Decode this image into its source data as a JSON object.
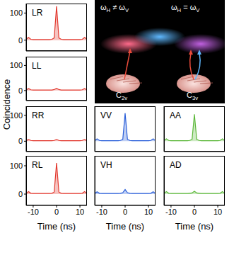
{
  "ylabel": "Coincidence",
  "inset": {
    "left_top": "ωH ≠ ωV",
    "right_top": "ωH = ωV",
    "left_bottom": "C2v",
    "right_bottom": "C3v"
  },
  "chart_data": [
    {
      "type": "area",
      "title": "LR",
      "color": "#e2392f",
      "x": [
        -13,
        -12,
        -11,
        -10,
        -9,
        -8,
        -7,
        -6,
        -5,
        -4,
        -3,
        -2,
        -1,
        0,
        1,
        2,
        3,
        4,
        5,
        6,
        7,
        8,
        9,
        10,
        11,
        12,
        13
      ],
      "values": [
        3,
        10,
        3,
        2,
        2,
        2,
        2,
        2,
        2,
        2,
        2,
        3,
        8,
        125,
        8,
        3,
        2,
        2,
        2,
        2,
        2,
        2,
        2,
        2,
        3,
        10,
        3
      ],
      "xlim": [
        -13,
        13
      ],
      "xticks": [
        -10,
        0,
        10
      ],
      "ylim": [
        -40,
        135
      ],
      "yticks": [
        0,
        100
      ],
      "tick_labels": "y"
    },
    {
      "type": "area",
      "title": "LL",
      "color": "#e2392f",
      "x": [
        -13,
        -12,
        -11,
        -10,
        -9,
        -8,
        -7,
        -6,
        -5,
        -4,
        -3,
        -2,
        -1,
        0,
        1,
        2,
        3,
        4,
        5,
        6,
        7,
        8,
        9,
        10,
        11,
        12,
        13
      ],
      "values": [
        2,
        8,
        3,
        2,
        2,
        2,
        2,
        2,
        2,
        2,
        2,
        2,
        4,
        9,
        4,
        2,
        2,
        2,
        2,
        2,
        2,
        2,
        2,
        2,
        3,
        8,
        2
      ],
      "xlim": [
        -13,
        13
      ],
      "xticks": [
        -10,
        0,
        10
      ],
      "ylim": [
        -40,
        135
      ],
      "yticks": [
        0,
        100
      ],
      "tick_labels": "y"
    },
    {
      "type": "area",
      "title": "RR",
      "color": "#e2392f",
      "x": [
        -13,
        -12,
        -11,
        -10,
        -9,
        -8,
        -7,
        -6,
        -5,
        -4,
        -3,
        -2,
        -1,
        0,
        1,
        2,
        3,
        4,
        5,
        6,
        7,
        8,
        9,
        10,
        11,
        12,
        13
      ],
      "values": [
        2,
        7,
        3,
        2,
        2,
        2,
        2,
        2,
        2,
        2,
        2,
        2,
        3,
        7,
        3,
        2,
        2,
        2,
        2,
        2,
        2,
        2,
        2,
        2,
        3,
        7,
        2
      ],
      "xlim": [
        -13,
        13
      ],
      "xticks": [
        -10,
        0,
        10
      ],
      "ylim": [
        -40,
        135
      ],
      "yticks": [
        0,
        100
      ],
      "tick_labels": "y"
    },
    {
      "type": "area",
      "title": "RL",
      "color": "#e2392f",
      "x": [
        -13,
        -12,
        -11,
        -10,
        -9,
        -8,
        -7,
        -6,
        -5,
        -4,
        -3,
        -2,
        -1,
        0,
        1,
        2,
        3,
        4,
        5,
        6,
        7,
        8,
        9,
        10,
        11,
        12,
        13
      ],
      "values": [
        2,
        9,
        3,
        2,
        2,
        2,
        2,
        2,
        2,
        2,
        2,
        3,
        7,
        110,
        7,
        3,
        2,
        2,
        2,
        2,
        2,
        2,
        2,
        2,
        3,
        9,
        2
      ],
      "xlim": [
        -13,
        13
      ],
      "xticks": [
        -10,
        0,
        10
      ],
      "ylim": [
        -40,
        135
      ],
      "yticks": [
        0,
        100
      ],
      "tick_labels": true,
      "xlabel": "Time (ns)"
    },
    {
      "type": "area",
      "title": "VV",
      "color": "#2b5fd9",
      "x": [
        -13,
        -12,
        -11,
        -10,
        -9,
        -8,
        -7,
        -6,
        -5,
        -4,
        -3,
        -2,
        -1,
        0,
        1,
        2,
        3,
        4,
        5,
        6,
        7,
        8,
        9,
        10,
        11,
        12,
        13
      ],
      "values": [
        2,
        9,
        3,
        2,
        2,
        2,
        2,
        2,
        2,
        2,
        2,
        3,
        7,
        108,
        7,
        3,
        2,
        2,
        2,
        2,
        2,
        2,
        2,
        2,
        3,
        9,
        2
      ],
      "xlim": [
        -13,
        13
      ],
      "xticks": [
        -10,
        0,
        10
      ],
      "ylim": [
        -40,
        135
      ],
      "yticks": [
        0,
        100
      ],
      "tick_labels": false
    },
    {
      "type": "area",
      "title": "VH",
      "color": "#2b5fd9",
      "x": [
        -13,
        -12,
        -11,
        -10,
        -9,
        -8,
        -7,
        -6,
        -5,
        -4,
        -3,
        -2,
        -1,
        0,
        1,
        2,
        3,
        4,
        5,
        6,
        7,
        8,
        9,
        10,
        11,
        12,
        13
      ],
      "values": [
        2,
        8,
        3,
        2,
        2,
        2,
        2,
        2,
        2,
        2,
        2,
        3,
        5,
        16,
        5,
        3,
        2,
        2,
        2,
        2,
        2,
        2,
        2,
        2,
        3,
        8,
        2
      ],
      "xlim": [
        -13,
        13
      ],
      "xticks": [
        -10,
        0,
        10
      ],
      "ylim": [
        -40,
        135
      ],
      "yticks": [
        0,
        100
      ],
      "tick_labels": "x",
      "xlabel": "Time (ns)"
    },
    {
      "type": "area",
      "title": "AA",
      "color": "#5cb83a",
      "x": [
        -13,
        -12,
        -11,
        -10,
        -9,
        -8,
        -7,
        -6,
        -5,
        -4,
        -3,
        -2,
        -1,
        0,
        1,
        2,
        3,
        4,
        5,
        6,
        7,
        8,
        9,
        10,
        11,
        12,
        13
      ],
      "values": [
        2,
        9,
        3,
        2,
        2,
        2,
        2,
        2,
        2,
        2,
        2,
        3,
        7,
        104,
        7,
        3,
        2,
        2,
        2,
        2,
        2,
        2,
        2,
        2,
        3,
        9,
        2
      ],
      "xlim": [
        -13,
        13
      ],
      "xticks": [
        -10,
        0,
        10
      ],
      "ylim": [
        -40,
        135
      ],
      "yticks": [
        0,
        100
      ],
      "tick_labels": false
    },
    {
      "type": "area",
      "title": "AD",
      "color": "#5cb83a",
      "x": [
        -13,
        -12,
        -11,
        -10,
        -9,
        -8,
        -7,
        -6,
        -5,
        -4,
        -3,
        -2,
        -1,
        0,
        1,
        2,
        3,
        4,
        5,
        6,
        7,
        8,
        9,
        10,
        11,
        12,
        13
      ],
      "values": [
        2,
        9,
        3,
        2,
        2,
        2,
        2,
        2,
        2,
        2,
        2,
        3,
        4,
        10,
        4,
        3,
        2,
        2,
        2,
        2,
        2,
        2,
        2,
        2,
        3,
        9,
        2
      ],
      "xlim": [
        -13,
        13
      ],
      "xticks": [
        -10,
        0,
        10
      ],
      "ylim": [
        -40,
        135
      ],
      "yticks": [
        0,
        100
      ],
      "tick_labels": "x",
      "xlabel": "Time (ns)"
    }
  ]
}
